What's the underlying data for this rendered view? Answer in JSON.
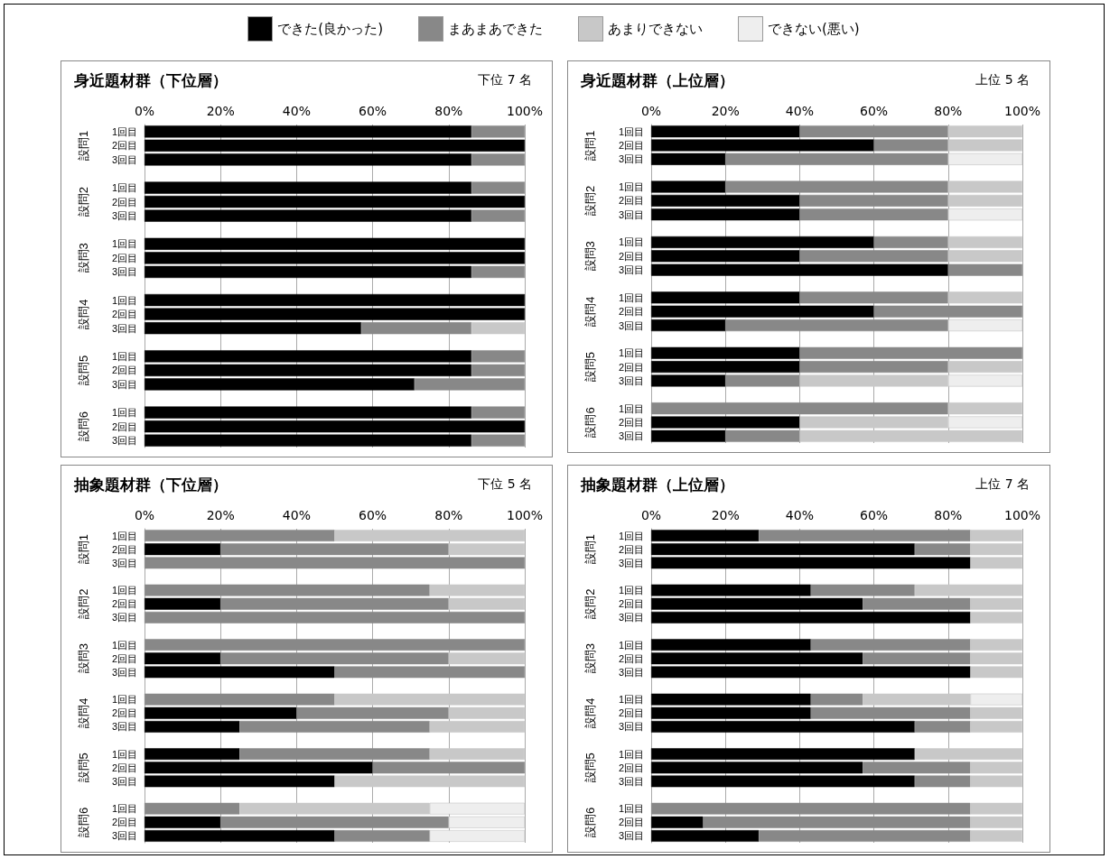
{
  "chart_data": [
    {
      "type": "bar",
      "orientation": "horizontal",
      "stacked": true,
      "title": "身近題材群（下位層）",
      "subtitle": "下位 7 名",
      "legend": "top",
      "grid": "x",
      "categories": [
        "1回目",
        "2回目",
        "3回目",
        null,
        "1回目",
        "2回目",
        "3回目",
        null,
        "1回目",
        "2回目",
        "3回目",
        null,
        "1回目",
        "2回目",
        "3回目",
        null,
        "1回目",
        "2回目",
        "3回目",
        null,
        "1回目",
        "2回目",
        "3回目"
      ],
      "annotations": [
        "設問1",
        "設問2",
        "設問3",
        "設問4",
        "設問5",
        "設問6"
      ],
      "xlim": [
        0,
        100
      ],
      "xticks": [
        {
          "value": 0,
          "label": "0%"
        },
        {
          "value": 20,
          "label": "20%"
        },
        {
          "value": 40,
          "label": "40%"
        },
        {
          "value": 60,
          "label": "60%"
        },
        {
          "value": 80,
          "label": "80%"
        },
        {
          "value": 100,
          "label": "100%"
        }
      ],
      "series": [
        {
          "name": "できた(良かった)",
          "color": "#000000",
          "values": [
            86,
            100,
            86,
            null,
            86,
            100,
            86,
            null,
            100,
            100,
            86,
            null,
            100,
            100,
            57,
            null,
            86,
            86,
            71,
            null,
            86,
            100,
            86
          ]
        },
        {
          "name": "まあまあできた",
          "color": "#888888",
          "values": [
            14,
            null,
            14,
            null,
            14,
            null,
            14,
            null,
            null,
            null,
            14,
            null,
            null,
            null,
            29,
            null,
            14,
            14,
            29,
            null,
            14,
            null,
            14
          ]
        },
        {
          "name": "あまりできない",
          "color": "#c8c8c8",
          "values": [
            null,
            null,
            null,
            null,
            null,
            null,
            null,
            null,
            null,
            null,
            null,
            null,
            null,
            null,
            14,
            null,
            null,
            null,
            null,
            null,
            null,
            null,
            null
          ]
        },
        {
          "name": "できない(悪い)",
          "color": "#eeeeee",
          "values": [
            null,
            null,
            null,
            null,
            null,
            null,
            null,
            null,
            null,
            null,
            null,
            null,
            null,
            null,
            null,
            null,
            null,
            null,
            null,
            null,
            null,
            null,
            null
          ]
        }
      ]
    },
    {
      "type": "bar",
      "orientation": "horizontal",
      "stacked": true,
      "title": "身近題材群（上位層）",
      "subtitle": "上位 5 名",
      "grid": "x",
      "categories": [
        "1回目",
        "2回目",
        "3回目",
        null,
        "1回目",
        "2回目",
        "3回目",
        null,
        "1回目",
        "2回目",
        "3回目",
        null,
        "1回目",
        "2回目",
        "3回目",
        null,
        "1回目",
        "2回目",
        "3回目",
        null,
        "1回目",
        "2回目",
        "3回目"
      ],
      "annotations": [
        "設問1",
        "設問2",
        "設問3",
        "設問4",
        "設問5",
        "設問6"
      ],
      "xlim": [
        0,
        100
      ],
      "xticks": [
        {
          "value": 0,
          "label": "0%"
        },
        {
          "value": 20,
          "label": "20%"
        },
        {
          "value": 40,
          "label": "40%"
        },
        {
          "value": 60,
          "label": "60%"
        },
        {
          "value": 80,
          "label": "80%"
        },
        {
          "value": 100,
          "label": "100%"
        }
      ],
      "series": [
        {
          "color": "#000000",
          "values": [
            40,
            60,
            20,
            null,
            20,
            40,
            40,
            null,
            60,
            40,
            80,
            null,
            40,
            60,
            20,
            null,
            40,
            40,
            20,
            null,
            null,
            40,
            20
          ]
        },
        {
          "color": "#888888",
          "values": [
            40,
            20,
            60,
            null,
            60,
            40,
            40,
            null,
            20,
            40,
            20,
            null,
            40,
            40,
            60,
            null,
            60,
            40,
            20,
            null,
            80,
            null,
            20
          ]
        },
        {
          "color": "#c8c8c8",
          "values": [
            20,
            20,
            null,
            null,
            20,
            20,
            null,
            null,
            20,
            20,
            null,
            null,
            20,
            null,
            null,
            null,
            null,
            20,
            40,
            null,
            20,
            40,
            60
          ]
        },
        {
          "color": "#eeeeee",
          "values": [
            null,
            null,
            20,
            null,
            null,
            null,
            20,
            null,
            null,
            null,
            null,
            null,
            null,
            null,
            20,
            null,
            null,
            null,
            20,
            null,
            null,
            20,
            null
          ]
        }
      ]
    },
    {
      "type": "bar",
      "orientation": "horizontal",
      "stacked": true,
      "title": "抽象題材群（下位層）",
      "subtitle": "下位 5 名",
      "grid": "x",
      "categories": [
        "1回目",
        "2回目",
        "3回目",
        null,
        "1回目",
        "2回目",
        "3回目",
        null,
        "1回目",
        "2回目",
        "3回目",
        null,
        "1回目",
        "2回目",
        "3回目",
        null,
        "1回目",
        "2回目",
        "3回目",
        null,
        "1回目",
        "2回目",
        "3回目"
      ],
      "annotations": [
        "設問1",
        "設問2",
        "設問3",
        "設問4",
        "設問5",
        "設問6"
      ],
      "xlim": [
        0,
        100
      ],
      "xticks": [
        {
          "value": 0,
          "label": "0%"
        },
        {
          "value": 20,
          "label": "20%"
        },
        {
          "value": 40,
          "label": "40%"
        },
        {
          "value": 60,
          "label": "60%"
        },
        {
          "value": 80,
          "label": "80%"
        },
        {
          "value": 100,
          "label": "100%"
        }
      ],
      "series": [
        {
          "color": "#000000",
          "values": [
            null,
            20,
            null,
            null,
            null,
            20,
            null,
            null,
            null,
            20,
            50,
            null,
            null,
            40,
            25,
            null,
            25,
            60,
            50,
            null,
            null,
            20,
            50
          ]
        },
        {
          "color": "#888888",
          "values": [
            50,
            60,
            100,
            null,
            75,
            60,
            100,
            null,
            100,
            60,
            50,
            null,
            50,
            40,
            50,
            null,
            50,
            40,
            null,
            null,
            25,
            60,
            25
          ]
        },
        {
          "color": "#c8c8c8",
          "values": [
            50,
            20,
            null,
            null,
            25,
            20,
            null,
            null,
            null,
            20,
            null,
            null,
            50,
            20,
            25,
            null,
            25,
            null,
            50,
            null,
            50,
            null,
            null
          ]
        },
        {
          "color": "#eeeeee",
          "values": [
            null,
            null,
            null,
            null,
            null,
            null,
            null,
            null,
            null,
            null,
            null,
            null,
            null,
            null,
            null,
            null,
            null,
            null,
            null,
            null,
            25,
            20,
            25
          ]
        }
      ]
    },
    {
      "type": "bar",
      "orientation": "horizontal",
      "stacked": true,
      "title": "抽象題材群（上位層）",
      "subtitle": "上位 7 名",
      "grid": "x",
      "categories": [
        "1回目",
        "2回目",
        "3回目",
        null,
        "1回目",
        "2回目",
        "3回目",
        null,
        "1回目",
        "2回目",
        "3回目",
        null,
        "1回目",
        "2回目",
        "3回目",
        null,
        "1回目",
        "2回目",
        "3回目",
        null,
        "1回目",
        "2回目",
        "3回目"
      ],
      "annotations": [
        "設問1",
        "設問2",
        "設問3",
        "設問4",
        "設問5",
        "設問6"
      ],
      "xlim": [
        0,
        100
      ],
      "xticks": [
        {
          "value": 0,
          "label": "0%"
        },
        {
          "value": 20,
          "label": "20%"
        },
        {
          "value": 40,
          "label": "40%"
        },
        {
          "value": 60,
          "label": "60%"
        },
        {
          "value": 80,
          "label": "80%"
        },
        {
          "value": 100,
          "label": "100%"
        }
      ],
      "series": [
        {
          "color": "#000000",
          "values": [
            29,
            71,
            86,
            null,
            43,
            57,
            86,
            null,
            43,
            57,
            86,
            null,
            43,
            43,
            71,
            null,
            71,
            57,
            71,
            null,
            null,
            14,
            29
          ]
        },
        {
          "color": "#888888",
          "values": [
            57,
            15,
            null,
            null,
            28,
            29,
            null,
            null,
            43,
            29,
            null,
            null,
            14,
            43,
            15,
            null,
            null,
            29,
            15,
            null,
            86,
            72,
            57
          ]
        },
        {
          "color": "#c8c8c8",
          "values": [
            14,
            14,
            14,
            null,
            29,
            14,
            14,
            null,
            14,
            14,
            14,
            null,
            29,
            14,
            14,
            null,
            29,
            14,
            14,
            null,
            14,
            14,
            14
          ]
        },
        {
          "color": "#eeeeee",
          "values": [
            null,
            null,
            null,
            null,
            null,
            null,
            null,
            null,
            null,
            null,
            null,
            null,
            14,
            null,
            null,
            null,
            null,
            null,
            null,
            null,
            null,
            null,
            null
          ]
        }
      ]
    }
  ]
}
